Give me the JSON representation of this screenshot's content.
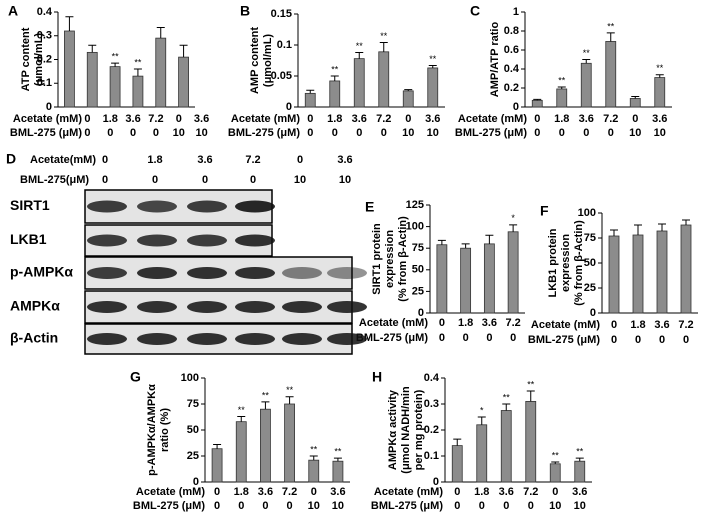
{
  "chart_data": [
    {
      "type": "bar",
      "panel": "A",
      "ylabel_lines": [
        "ATP content",
        "(μmol/mL)"
      ],
      "categories": [
        "0",
        "1.8",
        "3.6",
        "7.2",
        "0",
        "3.6"
      ],
      "x_rows": [
        {
          "label": "Acetate (mM)",
          "values": [
            "0",
            "1.8",
            "3.6",
            "7.2",
            "0",
            "3.6"
          ]
        },
        {
          "label": "BML-275 (μM)",
          "values": [
            "0",
            "0",
            "0",
            "0",
            "10",
            "10"
          ]
        }
      ],
      "values": [
        0.32,
        0.23,
        0.17,
        0.13,
        0.29,
        0.21
      ],
      "errors": [
        0.06,
        0.03,
        0.015,
        0.03,
        0.045,
        0.05
      ],
      "significance": [
        null,
        null,
        "**",
        "**",
        null,
        null
      ],
      "ylim": [
        0,
        0.4
      ],
      "yticks": [
        0,
        0.1,
        0.2,
        0.3,
        0.4
      ],
      "color": "#8c8c8c"
    },
    {
      "type": "bar",
      "panel": "B",
      "ylabel_lines": [
        "AMP content",
        "(μmol/mL)"
      ],
      "categories": [
        "0",
        "1.8",
        "3.6",
        "7.2",
        "0",
        "3.6"
      ],
      "x_rows": [
        {
          "label": "Acetate (mM)",
          "values": [
            "0",
            "1.8",
            "3.6",
            "7.2",
            "0",
            "3.6"
          ]
        },
        {
          "label": "BML-275 (μM)",
          "values": [
            "0",
            "0",
            "0",
            "0",
            "10",
            "10"
          ]
        }
      ],
      "values": [
        0.022,
        0.042,
        0.078,
        0.089,
        0.026,
        0.063
      ],
      "errors": [
        0.005,
        0.008,
        0.01,
        0.015,
        0.002,
        0.004
      ],
      "significance": [
        null,
        "**",
        "**",
        "**",
        null,
        "**"
      ],
      "ylim": [
        0,
        0.15
      ],
      "yticks": [
        0,
        0.05,
        0.1,
        0.15
      ],
      "color": "#8c8c8c"
    },
    {
      "type": "bar",
      "panel": "C",
      "ylabel_lines": [
        "AMP/ATP ratio"
      ],
      "categories": [
        "0",
        "1.8",
        "3.6",
        "7.2",
        "0",
        "3.6"
      ],
      "x_rows": [
        {
          "label": "Acetate (mM)",
          "values": [
            "0",
            "1.8",
            "3.6",
            "7.2",
            "0",
            "3.6"
          ]
        },
        {
          "label": "BML-275 (μM)",
          "values": [
            "0",
            "0",
            "0",
            "0",
            "10",
            "10"
          ]
        }
      ],
      "values": [
        0.07,
        0.19,
        0.46,
        0.69,
        0.09,
        0.31
      ],
      "errors": [
        0.01,
        0.02,
        0.04,
        0.09,
        0.02,
        0.03
      ],
      "significance": [
        null,
        "**",
        "**",
        "**",
        null,
        "**"
      ],
      "ylim": [
        0,
        1
      ],
      "yticks": [
        0,
        0.2,
        0.4,
        0.6,
        0.8,
        1
      ],
      "color": "#8c8c8c"
    },
    {
      "type": "bar",
      "panel": "E",
      "ylabel_lines": [
        "SIRT1 protein",
        "expression",
        "(% from β-Actin)"
      ],
      "categories": [
        "0",
        "1.8",
        "3.6",
        "7.2"
      ],
      "x_rows": [
        {
          "label": "Acetate (mM)",
          "values": [
            "0",
            "1.8",
            "3.6",
            "7.2"
          ]
        },
        {
          "label": "BML-275 (μM)",
          "values": [
            "0",
            "0",
            "0",
            "0"
          ]
        }
      ],
      "values": [
        79,
        75,
        80,
        94
      ],
      "errors": [
        5,
        5,
        10,
        8
      ],
      "significance": [
        null,
        null,
        null,
        "*"
      ],
      "ylim": [
        0,
        125
      ],
      "yticks": [
        0,
        25,
        50,
        75,
        100,
        125
      ],
      "color": "#8c8c8c"
    },
    {
      "type": "bar",
      "panel": "F",
      "ylabel_lines": [
        "LKB1 protein",
        "expression",
        "(% from β-Actin)"
      ],
      "categories": [
        "0",
        "1.8",
        "3.6",
        "7.2"
      ],
      "x_rows": [
        {
          "label": "Acetate (mM)",
          "values": [
            "0",
            "1.8",
            "3.6",
            "7.2"
          ]
        },
        {
          "label": "BML-275 (μM)",
          "values": [
            "0",
            "0",
            "0",
            "0"
          ]
        }
      ],
      "values": [
        77,
        78,
        82,
        88
      ],
      "errors": [
        6,
        10,
        7,
        5
      ],
      "significance": [
        null,
        null,
        null,
        null
      ],
      "ylim": [
        0,
        100
      ],
      "yticks": [
        0,
        25,
        50,
        75,
        100
      ],
      "color": "#8c8c8c"
    },
    {
      "type": "bar",
      "panel": "G",
      "ylabel_lines": [
        "p-AMPKα/AMPKα",
        "ratio (%)"
      ],
      "categories": [
        "0",
        "1.8",
        "3.6",
        "7.2",
        "0",
        "3.6"
      ],
      "x_rows": [
        {
          "label": "Acetate (mM)",
          "values": [
            "0",
            "1.8",
            "3.6",
            "7.2",
            "0",
            "3.6"
          ]
        },
        {
          "label": "BML-275 (μM)",
          "values": [
            "0",
            "0",
            "0",
            "0",
            "10",
            "10"
          ]
        }
      ],
      "values": [
        32,
        58,
        70,
        75,
        21,
        20
      ],
      "errors": [
        4,
        5,
        7,
        7,
        4,
        3
      ],
      "significance": [
        null,
        "**",
        "**",
        "**",
        "**",
        "**"
      ],
      "ylim": [
        0,
        100
      ],
      "yticks": [
        0,
        25,
        50,
        75,
        100
      ],
      "color": "#8c8c8c"
    },
    {
      "type": "bar",
      "panel": "H",
      "ylabel_lines": [
        "AMPKα activity",
        "(μmol NADH/min",
        "per mg protein)"
      ],
      "categories": [
        "0",
        "1.8",
        "3.6",
        "7.2",
        "0",
        "3.6"
      ],
      "x_rows": [
        {
          "label": "Acetate (mM)",
          "values": [
            "0",
            "1.8",
            "3.6",
            "7.2",
            "0",
            "3.6"
          ]
        },
        {
          "label": "BML-275 (μM)",
          "values": [
            "0",
            "0",
            "0",
            "0",
            "10",
            "10"
          ]
        }
      ],
      "values": [
        0.14,
        0.22,
        0.275,
        0.31,
        0.07,
        0.08
      ],
      "errors": [
        0.025,
        0.03,
        0.025,
        0.04,
        0.007,
        0.012
      ],
      "significance": [
        null,
        "*",
        "**",
        "**",
        "**",
        "**"
      ],
      "ylim": [
        0,
        0.4
      ],
      "yticks": [
        0,
        0.1,
        0.2,
        0.3,
        0.4
      ],
      "color": "#8c8c8c"
    }
  ],
  "blot": {
    "panel": "D",
    "header": [
      {
        "label": "Acetate(mM)",
        "values": [
          "0",
          "1.8",
          "3.6",
          "7.2",
          "0",
          "3.6"
        ]
      },
      {
        "label": "BML-275(μM)",
        "values": [
          "0",
          "0",
          "0",
          "0",
          "10",
          "10"
        ]
      }
    ],
    "rows": [
      "SIRT1",
      "LKB1",
      "p-AMPKα",
      "AMPKα",
      "β-Actin"
    ]
  }
}
